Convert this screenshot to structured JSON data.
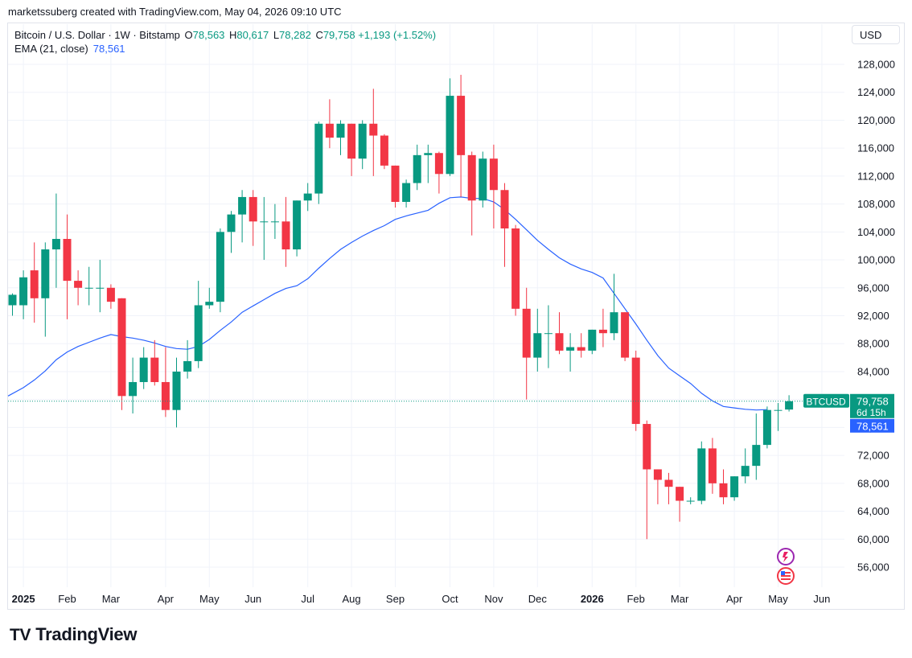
{
  "caption": "marketssuberg created with TradingView.com, May 04, 2026 09:10 UTC",
  "legend": {
    "symbol": "Bitcoin / U.S. Dollar · 1W · Bitstamp",
    "o_label": "O",
    "o_value": "78,563",
    "h_label": "H",
    "h_value": "80,617",
    "l_label": "L",
    "l_value": "78,282",
    "c_label": "C",
    "c_value": "79,758",
    "change": "+1,193 (+1.52%)",
    "ema_label": "EMA (21, close)",
    "ema_value": "78,561"
  },
  "currency_button": "USD",
  "brand": "TradingView",
  "colors": {
    "up": "#089981",
    "down": "#f23645",
    "ema": "#2962ff",
    "grid": "#f0f3fa"
  },
  "chart_data": {
    "type": "candlestick",
    "timeframe": "1W",
    "ylim": [
      52000,
      131000
    ],
    "yticks": [
      56000,
      60000,
      64000,
      68000,
      72000,
      76000,
      80000,
      84000,
      88000,
      92000,
      96000,
      100000,
      104000,
      108000,
      112000,
      116000,
      120000,
      124000,
      128000
    ],
    "ytick_labels": [
      "56,000",
      "60,000",
      "64,000",
      "68,000",
      "72,000",
      "76,000",
      "80,000",
      "84,000",
      "88,000",
      "92,000",
      "96,000",
      "100,000",
      "104,000",
      "108,000",
      "112,000",
      "116,000",
      "120,000",
      "124,000",
      "128,000"
    ],
    "xticks": [
      {
        "label": "2025",
        "bar": 1,
        "bold": true
      },
      {
        "label": "Feb",
        "bar": 5,
        "bold": false
      },
      {
        "label": "Mar",
        "bar": 9,
        "bold": false
      },
      {
        "label": "Apr",
        "bar": 14,
        "bold": false
      },
      {
        "label": "May",
        "bar": 18,
        "bold": false
      },
      {
        "label": "Jun",
        "bar": 22,
        "bold": false
      },
      {
        "label": "Jul",
        "bar": 27,
        "bold": false
      },
      {
        "label": "Aug",
        "bar": 31,
        "bold": false
      },
      {
        "label": "Sep",
        "bar": 35,
        "bold": false
      },
      {
        "label": "Oct",
        "bar": 40,
        "bold": false
      },
      {
        "label": "Nov",
        "bar": 44,
        "bold": false
      },
      {
        "label": "Dec",
        "bar": 48,
        "bold": false
      },
      {
        "label": "2026",
        "bar": 53,
        "bold": true
      },
      {
        "label": "Feb",
        "bar": 57,
        "bold": false
      },
      {
        "label": "Mar",
        "bar": 61,
        "bold": false
      },
      {
        "label": "Apr",
        "bar": 66,
        "bold": false
      },
      {
        "label": "May",
        "bar": 70,
        "bold": false
      },
      {
        "label": "Jun",
        "bar": 74,
        "bold": false
      }
    ],
    "candles": [
      [
        93500,
        95000,
        92000,
        95200
      ],
      [
        93500,
        97500,
        91500,
        98500
      ],
      [
        98500,
        94500,
        91000,
        102500
      ],
      [
        94500,
        101500,
        89000,
        102500
      ],
      [
        101500,
        103000,
        96000,
        109500
      ],
      [
        103000,
        97000,
        91500,
        106500
      ],
      [
        97000,
        96000,
        93500,
        98500
      ],
      [
        96000,
        96000,
        93500,
        99000
      ],
      [
        96000,
        96000,
        92500,
        100000
      ],
      [
        96000,
        94000,
        93000,
        96500
      ],
      [
        94500,
        80500,
        78500,
        94500
      ],
      [
        80500,
        82500,
        78000,
        86000
      ],
      [
        82500,
        86000,
        81500,
        87500
      ],
      [
        86000,
        82500,
        82000,
        88500
      ],
      [
        82500,
        78500,
        77500,
        87500
      ],
      [
        78500,
        84000,
        76000,
        86000
      ],
      [
        84000,
        85500,
        83000,
        88500
      ],
      [
        85500,
        93500,
        84500,
        97000
      ],
      [
        93500,
        94000,
        93000,
        96000
      ],
      [
        94000,
        104000,
        92500,
        104500
      ],
      [
        104000,
        106500,
        101000,
        107000
      ],
      [
        106500,
        109000,
        102500,
        110000
      ],
      [
        109000,
        105500,
        102000,
        110000
      ],
      [
        105500,
        105500,
        100000,
        109000
      ],
      [
        105500,
        105500,
        103000,
        108000
      ],
      [
        105500,
        101500,
        99000,
        109000
      ],
      [
        101500,
        108500,
        100500,
        108500
      ],
      [
        108500,
        109500,
        107000,
        111000
      ],
      [
        109500,
        119500,
        108000,
        119800
      ],
      [
        119500,
        117500,
        116000,
        123000
      ],
      [
        117500,
        119500,
        115000,
        120000
      ],
      [
        119500,
        114500,
        112000,
        119500
      ],
      [
        114500,
        119500,
        113000,
        120000
      ],
      [
        119500,
        117800,
        112000,
        124500
      ],
      [
        117800,
        113500,
        113000,
        118000
      ],
      [
        113500,
        108300,
        107500,
        113500
      ],
      [
        108300,
        111000,
        107500,
        111500
      ],
      [
        111000,
        115000,
        110000,
        116500
      ],
      [
        115000,
        115300,
        111000,
        116500
      ],
      [
        115300,
        112300,
        109500,
        115500
      ],
      [
        112300,
        123500,
        112000,
        126000
      ],
      [
        123500,
        115000,
        109000,
        126500
      ],
      [
        115000,
        108500,
        103500,
        115500
      ],
      [
        108500,
        114500,
        107500,
        115500
      ],
      [
        114500,
        110000,
        104500,
        116500
      ],
      [
        110000,
        104500,
        99000,
        111000
      ],
      [
        104500,
        93000,
        92000,
        105000
      ],
      [
        93000,
        86000,
        80000,
        96000
      ],
      [
        86000,
        89500,
        84000,
        93000
      ],
      [
        89500,
        89500,
        84500,
        93500
      ],
      [
        89500,
        87000,
        86500,
        92500
      ],
      [
        87000,
        87500,
        84000,
        89500
      ],
      [
        87500,
        87000,
        86000,
        89500
      ],
      [
        87000,
        90000,
        86500,
        90000
      ],
      [
        90000,
        89500,
        87500,
        93000
      ],
      [
        89500,
        92500,
        88500,
        98000
      ],
      [
        92500,
        86000,
        85500,
        92500
      ],
      [
        86000,
        76500,
        75500,
        87000
      ],
      [
        76500,
        70000,
        60000,
        77000
      ],
      [
        70000,
        68500,
        65000,
        70000
      ],
      [
        68500,
        67500,
        65000,
        69500
      ],
      [
        67500,
        65500,
        62500,
        67500
      ],
      [
        65500,
        65500,
        65000,
        66000
      ],
      [
        65500,
        73000,
        65000,
        74000
      ],
      [
        73000,
        68000,
        66500,
        74500
      ],
      [
        68000,
        66000,
        65000,
        70000
      ],
      [
        66000,
        69000,
        65500,
        69000
      ],
      [
        69000,
        70500,
        68000,
        73000
      ],
      [
        70500,
        73500,
        68500,
        78000
      ],
      [
        73500,
        78500,
        73000,
        79000
      ],
      [
        78500,
        78500,
        75500,
        79500
      ],
      [
        78563,
        79758,
        78282,
        80617
      ]
    ],
    "ema": [
      80500,
      81700,
      82800,
      84100,
      85700,
      86800,
      87600,
      88200,
      88800,
      89300,
      89000,
      88800,
      88500,
      88100,
      87600,
      87300,
      87200,
      87600,
      88600,
      89900,
      91100,
      92500,
      93400,
      94300,
      95200,
      95900,
      96300,
      97300,
      98800,
      100200,
      101500,
      102500,
      103400,
      104200,
      104900,
      105800,
      106300,
      106700,
      107100,
      108100,
      108900,
      109000,
      108800,
      108800,
      108300,
      107200,
      105800,
      104300,
      102800,
      101500,
      100300,
      99400,
      98700,
      98200,
      97400,
      95200,
      93000,
      90800,
      88500,
      86300,
      84500,
      83400,
      82300,
      80900,
      79800,
      79000,
      78800,
      78600,
      78500,
      78561
    ],
    "last_price": 79758,
    "last_price_label": "79,758",
    "countdown": "6d 15h",
    "symbol_tag": "BTCUSD",
    "ema_last": 78561,
    "ema_last_label": "78,561"
  }
}
